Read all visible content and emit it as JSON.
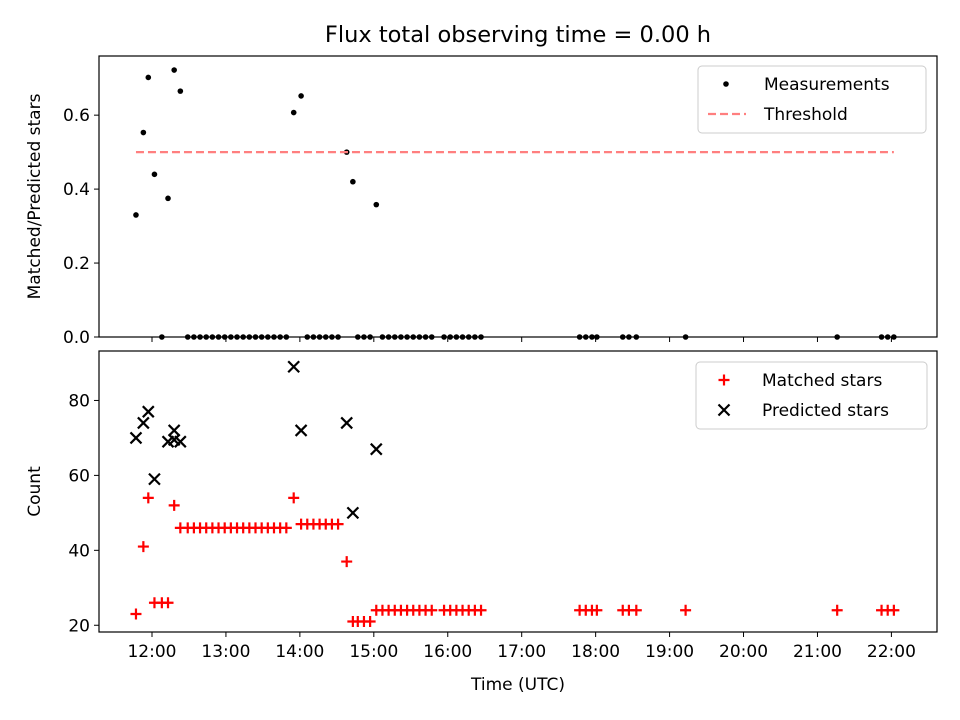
{
  "chart_data": [
    {
      "type": "scatter",
      "title": "Flux total observing time = 0.00 h",
      "xlabel": "",
      "ylabel": "Matched/Predicted stars",
      "xlim": [
        "11:17",
        "22:37"
      ],
      "ylim": [
        0,
        0.76
      ],
      "yticks": [
        0.0,
        0.2,
        0.4,
        0.6
      ],
      "ytick_labels": [
        "0.0",
        "0.2",
        "0.4",
        "0.6"
      ],
      "xticks": [
        "12:00",
        "13:00",
        "14:00",
        "15:00",
        "16:00",
        "17:00",
        "18:00",
        "19:00",
        "20:00",
        "21:00",
        "22:00"
      ],
      "xtick_labels_shown": false,
      "legend_position": "top-right",
      "series": [
        {
          "name": "Measurements",
          "marker": "dot",
          "color": "#000000",
          "points": [
            [
              "11:47",
              0.33
            ],
            [
              "11:53",
              0.553
            ],
            [
              "11:57",
              0.702
            ],
            [
              "12:02",
              0.44
            ],
            [
              "12:08",
              0.0
            ],
            [
              "12:13",
              0.375
            ],
            [
              "12:18",
              0.722
            ],
            [
              "12:23",
              0.665
            ],
            [
              "12:29",
              0.0
            ],
            [
              "12:34",
              0.0
            ],
            [
              "12:39",
              0.0
            ],
            [
              "12:44",
              0.0
            ],
            [
              "12:49",
              0.0
            ],
            [
              "12:54",
              0.0
            ],
            [
              "12:59",
              0.0
            ],
            [
              "13:04",
              0.0
            ],
            [
              "13:09",
              0.0
            ],
            [
              "13:14",
              0.0
            ],
            [
              "13:19",
              0.0
            ],
            [
              "13:24",
              0.0
            ],
            [
              "13:29",
              0.0
            ],
            [
              "13:34",
              0.0
            ],
            [
              "13:39",
              0.0
            ],
            [
              "13:44",
              0.0
            ],
            [
              "13:49",
              0.0
            ],
            [
              "13:55",
              0.607
            ],
            [
              "14:01",
              0.652
            ],
            [
              "14:06",
              0.0
            ],
            [
              "14:11",
              0.0
            ],
            [
              "14:16",
              0.0
            ],
            [
              "14:21",
              0.0
            ],
            [
              "14:26",
              0.0
            ],
            [
              "14:31",
              0.0
            ],
            [
              "14:38",
              0.5
            ],
            [
              "14:43",
              0.42
            ],
            [
              "14:47",
              0.0
            ],
            [
              "14:52",
              0.0
            ],
            [
              "14:57",
              0.0
            ],
            [
              "15:02",
              0.358
            ],
            [
              "15:07",
              0.0
            ],
            [
              "15:12",
              0.0
            ],
            [
              "15:17",
              0.0
            ],
            [
              "15:22",
              0.0
            ],
            [
              "15:27",
              0.0
            ],
            [
              "15:32",
              0.0
            ],
            [
              "15:37",
              0.0
            ],
            [
              "15:42",
              0.0
            ],
            [
              "15:47",
              0.0
            ],
            [
              "15:57",
              0.0
            ],
            [
              "16:02",
              0.0
            ],
            [
              "16:07",
              0.0
            ],
            [
              "16:12",
              0.0
            ],
            [
              "16:17",
              0.0
            ],
            [
              "16:22",
              0.0
            ],
            [
              "16:27",
              0.0
            ],
            [
              "17:47",
              0.0
            ],
            [
              "17:52",
              0.0
            ],
            [
              "17:57",
              0.0
            ],
            [
              "18:01",
              0.0
            ],
            [
              "18:22",
              0.0
            ],
            [
              "18:27",
              0.0
            ],
            [
              "18:33",
              0.0
            ],
            [
              "19:13",
              0.0
            ],
            [
              "21:16",
              0.0
            ],
            [
              "21:52",
              0.0
            ],
            [
              "21:57",
              0.0
            ],
            [
              "22:02",
              0.0
            ]
          ]
        },
        {
          "name": "Threshold",
          "type": "line",
          "style": "dashed",
          "color": "#ff7f7f",
          "points": [
            [
              "11:47",
              0.5
            ],
            [
              "22:02",
              0.5
            ]
          ]
        }
      ]
    },
    {
      "type": "scatter",
      "title": "",
      "xlabel": "Time (UTC)",
      "ylabel": "Count",
      "xlim": [
        "11:17",
        "22:37"
      ],
      "ylim": [
        18.2,
        93.2
      ],
      "yticks": [
        20,
        40,
        60,
        80
      ],
      "ytick_labels": [
        "20",
        "40",
        "60",
        "80"
      ],
      "xticks": [
        "12:00",
        "13:00",
        "14:00",
        "15:00",
        "16:00",
        "17:00",
        "18:00",
        "19:00",
        "20:00",
        "21:00",
        "22:00"
      ],
      "xtick_labels": [
        "12:00",
        "13:00",
        "14:00",
        "15:00",
        "16:00",
        "17:00",
        "18:00",
        "19:00",
        "20:00",
        "21:00",
        "22:00"
      ],
      "legend_position": "top-right",
      "series": [
        {
          "name": "Matched stars",
          "marker": "plus",
          "color": "#ff0000",
          "points": [
            [
              "11:47",
              23
            ],
            [
              "11:53",
              41
            ],
            [
              "11:57",
              54
            ],
            [
              "12:02",
              26
            ],
            [
              "12:08",
              26
            ],
            [
              "12:13",
              26
            ],
            [
              "12:18",
              52
            ],
            [
              "12:23",
              46
            ],
            [
              "12:29",
              46
            ],
            [
              "12:34",
              46
            ],
            [
              "12:39",
              46
            ],
            [
              "12:44",
              46
            ],
            [
              "12:49",
              46
            ],
            [
              "12:54",
              46
            ],
            [
              "12:59",
              46
            ],
            [
              "13:04",
              46
            ],
            [
              "13:09",
              46
            ],
            [
              "13:14",
              46
            ],
            [
              "13:19",
              46
            ],
            [
              "13:24",
              46
            ],
            [
              "13:29",
              46
            ],
            [
              "13:34",
              46
            ],
            [
              "13:39",
              46
            ],
            [
              "13:44",
              46
            ],
            [
              "13:49",
              46
            ],
            [
              "13:55",
              54
            ],
            [
              "14:01",
              47
            ],
            [
              "14:06",
              47
            ],
            [
              "14:11",
              47
            ],
            [
              "14:16",
              47
            ],
            [
              "14:21",
              47
            ],
            [
              "14:26",
              47
            ],
            [
              "14:31",
              47
            ],
            [
              "14:38",
              37
            ],
            [
              "14:43",
              21
            ],
            [
              "14:47",
              21
            ],
            [
              "14:52",
              21
            ],
            [
              "14:57",
              21
            ],
            [
              "15:02",
              24
            ],
            [
              "15:07",
              24
            ],
            [
              "15:12",
              24
            ],
            [
              "15:17",
              24
            ],
            [
              "15:22",
              24
            ],
            [
              "15:27",
              24
            ],
            [
              "15:32",
              24
            ],
            [
              "15:37",
              24
            ],
            [
              "15:42",
              24
            ],
            [
              "15:47",
              24
            ],
            [
              "15:57",
              24
            ],
            [
              "16:02",
              24
            ],
            [
              "16:07",
              24
            ],
            [
              "16:12",
              24
            ],
            [
              "16:17",
              24
            ],
            [
              "16:22",
              24
            ],
            [
              "16:27",
              24
            ],
            [
              "17:47",
              24
            ],
            [
              "17:52",
              24
            ],
            [
              "17:57",
              24
            ],
            [
              "18:01",
              24
            ],
            [
              "18:22",
              24
            ],
            [
              "18:27",
              24
            ],
            [
              "18:33",
              24
            ],
            [
              "19:13",
              24
            ],
            [
              "21:16",
              24
            ],
            [
              "21:52",
              24
            ],
            [
              "21:57",
              24
            ],
            [
              "22:02",
              24
            ]
          ]
        },
        {
          "name": "Predicted stars",
          "marker": "x",
          "color": "#000000",
          "points": [
            [
              "11:47",
              70
            ],
            [
              "11:53",
              74
            ],
            [
              "11:57",
              77
            ],
            [
              "12:02",
              59
            ],
            [
              "12:13",
              69
            ],
            [
              "12:18",
              72
            ],
            [
              "12:18",
              69.5
            ],
            [
              "12:23",
              69
            ],
            [
              "13:55",
              89
            ],
            [
              "14:01",
              72
            ],
            [
              "14:38",
              74
            ],
            [
              "14:43",
              50
            ],
            [
              "15:02",
              67
            ]
          ]
        }
      ]
    }
  ]
}
